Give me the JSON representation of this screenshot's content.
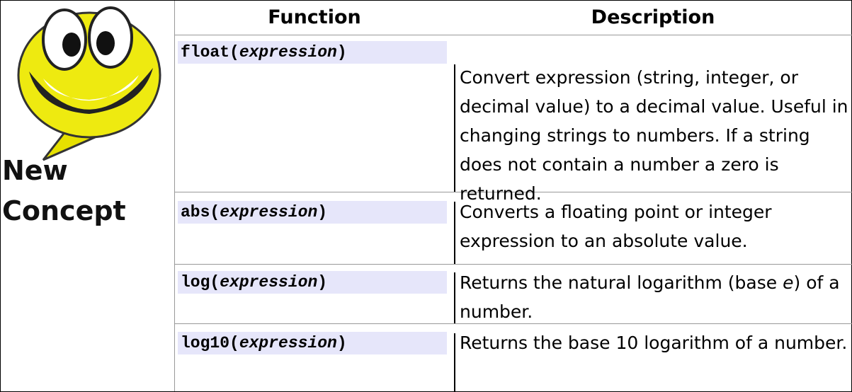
{
  "icon": {
    "line1": "New",
    "line2": "Concept"
  },
  "table": {
    "header": [
      "Function",
      "Description"
    ],
    "rows": [
      {
        "function": [
          "float(",
          "expression",
          ")"
        ],
        "description": [
          "Convert expression (string, integer, or decimal value) to a decimal value. Useful in changing strings to numbers. If a string does not contain a number a zero is returned."
        ]
      },
      {
        "function": [
          "abs(",
          "expression",
          ")"
        ],
        "description": [
          "Converts a floating point or integer expression to an absolute value."
        ]
      },
      {
        "function": [
          "log(",
          "expression",
          ")"
        ],
        "description": [
          "Returns the natural logarithm (base ",
          "e",
          ") of a number."
        ]
      },
      {
        "function": [
          "log10(",
          "expression",
          ")"
        ],
        "description": [
          "Returns the base 10 logarithm of a number."
        ]
      }
    ]
  }
}
